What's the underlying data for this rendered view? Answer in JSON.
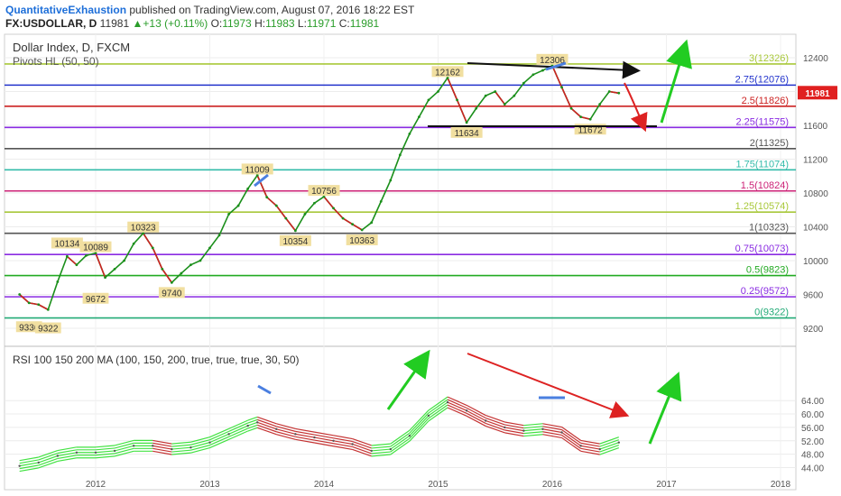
{
  "header": {
    "author": "QuantitativeExhaustion",
    "published": "published on TradingView.com, August 07, 2016 18:22 EST",
    "symbol": "FX:USDOLLAR, D",
    "price": "11981",
    "change": "+13 (+0.11%)",
    "o_label": "O:",
    "o": "11973",
    "h_label": "H:",
    "h": "11983",
    "l_label": "L:",
    "l": "11971",
    "c_label": "C:",
    "c": "11981"
  },
  "colors": {
    "up": "#2a9d2a",
    "author": "#1e6fd9",
    "last_price_bg": "#e02020",
    "rsi_green": "#22dd22",
    "rsi_red": "#bb1111"
  },
  "chart_data": [
    {
      "type": "line",
      "title": "Dollar Index, D, FXCM",
      "subtitle": "Pivots HL (50, 50)",
      "x_ticks": [
        "2012",
        "2013",
        "2014",
        "2015",
        "2016",
        "2017",
        "2018"
      ],
      "y_ticks": [
        9200,
        9600,
        10000,
        10400,
        10800,
        11200,
        11600,
        12000,
        12400
      ],
      "ylim": [
        9150,
        12520
      ],
      "last_price": "11981",
      "price_series": [
        [
          "2011-05",
          9600
        ],
        [
          "2011-06",
          9500
        ],
        [
          "2011-07",
          9480
        ],
        [
          "2011-08",
          9420
        ],
        [
          "2011-09",
          9750
        ],
        [
          "2011-10",
          10050
        ],
        [
          "2011-11",
          9950
        ],
        [
          "2011-12",
          10060
        ],
        [
          "2012-01",
          10089
        ],
        [
          "2012-02",
          9800
        ],
        [
          "2012-03",
          9900
        ],
        [
          "2012-04",
          10000
        ],
        [
          "2012-05",
          10200
        ],
        [
          "2012-06",
          10323
        ],
        [
          "2012-07",
          10150
        ],
        [
          "2012-08",
          9900
        ],
        [
          "2012-09",
          9740
        ],
        [
          "2012-10",
          9850
        ],
        [
          "2012-11",
          9950
        ],
        [
          "2012-12",
          10000
        ],
        [
          "2013-01",
          10150
        ],
        [
          "2013-02",
          10300
        ],
        [
          "2013-03",
          10550
        ],
        [
          "2013-04",
          10650
        ],
        [
          "2013-05",
          10850
        ],
        [
          "2013-06",
          11009
        ],
        [
          "2013-07",
          10750
        ],
        [
          "2013-08",
          10650
        ],
        [
          "2013-09",
          10500
        ],
        [
          "2013-10",
          10354
        ],
        [
          "2013-11",
          10550
        ],
        [
          "2013-12",
          10680
        ],
        [
          "2014-01",
          10756
        ],
        [
          "2014-02",
          10620
        ],
        [
          "2014-03",
          10500
        ],
        [
          "2014-04",
          10430
        ],
        [
          "2014-05",
          10363
        ],
        [
          "2014-06",
          10450
        ],
        [
          "2014-07",
          10700
        ],
        [
          "2014-08",
          10950
        ],
        [
          "2014-09",
          11250
        ],
        [
          "2014-10",
          11500
        ],
        [
          "2014-11",
          11700
        ],
        [
          "2014-12",
          11900
        ],
        [
          "2015-01",
          12000
        ],
        [
          "2015-02",
          12162
        ],
        [
          "2015-03",
          11900
        ],
        [
          "2015-04",
          11634
        ],
        [
          "2015-05",
          11800
        ],
        [
          "2015-06",
          11950
        ],
        [
          "2015-07",
          12000
        ],
        [
          "2015-08",
          11850
        ],
        [
          "2015-09",
          11950
        ],
        [
          "2015-10",
          12100
        ],
        [
          "2015-11",
          12200
        ],
        [
          "2015-12",
          12250
        ],
        [
          "2016-01",
          12306
        ],
        [
          "2016-02",
          12050
        ],
        [
          "2016-03",
          11800
        ],
        [
          "2016-04",
          11700
        ],
        [
          "2016-05",
          11672
        ],
        [
          "2016-06",
          11850
        ],
        [
          "2016-07",
          12000
        ],
        [
          "2016-08",
          11981
        ]
      ],
      "pivot_labels": [
        {
          "x": "2011-06",
          "y": 9336,
          "label": "9336"
        },
        {
          "x": "2011-08",
          "y": 9322,
          "label": "9322"
        },
        {
          "x": "2011-10",
          "y": 10134,
          "label": "10134"
        },
        {
          "x": "2012-01",
          "y": 10089,
          "label": "10089"
        },
        {
          "x": "2012-01",
          "y": 9672,
          "label": "9672"
        },
        {
          "x": "2012-06",
          "y": 10323,
          "label": "10323"
        },
        {
          "x": "2012-09",
          "y": 9740,
          "label": "9740"
        },
        {
          "x": "2013-06",
          "y": 11009,
          "label": "11009"
        },
        {
          "x": "2013-10",
          "y": 10354,
          "label": "10354"
        },
        {
          "x": "2014-01",
          "y": 10756,
          "label": "10756"
        },
        {
          "x": "2014-05",
          "y": 10363,
          "label": "10363"
        },
        {
          "x": "2015-02",
          "y": 12162,
          "label": "12162"
        },
        {
          "x": "2015-04",
          "y": 11634,
          "label": "11634"
        },
        {
          "x": "2016-01",
          "y": 12306,
          "label": "12306"
        },
        {
          "x": "2016-05",
          "y": 11672,
          "label": "11672"
        }
      ],
      "levels": [
        {
          "value": 12326,
          "label": "3(12326)",
          "color": "#a8c83a"
        },
        {
          "value": 12076,
          "label": "2.75(12076)",
          "color": "#2233cc"
        },
        {
          "value": 11826,
          "label": "2.5(11826)",
          "color": "#cc2222"
        },
        {
          "value": 11575,
          "label": "2.25(11575)",
          "color": "#8a2be2"
        },
        {
          "value": 11325,
          "label": "2(11325)",
          "color": "#555555"
        },
        {
          "value": 11074,
          "label": "1.75(11074)",
          "color": "#33bbaa"
        },
        {
          "value": 10824,
          "label": "1.5(10824)",
          "color": "#cc2277"
        },
        {
          "value": 10574,
          "label": "1.25(10574)",
          "color": "#a8c83a"
        },
        {
          "value": 10323,
          "label": "1(10323)",
          "color": "#555555"
        },
        {
          "value": 10073,
          "label": "0.75(10073)",
          "color": "#8a2be2"
        },
        {
          "value": 9823,
          "label": "0.5(9823)",
          "color": "#22aa22"
        },
        {
          "value": 9572,
          "label": "0.25(9572)",
          "color": "#8a2be2"
        },
        {
          "value": 9322,
          "label": "0(9322)",
          "color": "#22aa77"
        }
      ]
    },
    {
      "type": "line",
      "title": "RSI 100 150 200 MA (100, 150, 200, true, true, true, 30, 50)",
      "y_ticks": [
        44,
        48,
        52,
        56,
        60,
        64
      ],
      "ylim": [
        43,
        65
      ],
      "rsi_series": [
        [
          "2011-05",
          44.5
        ],
        [
          "2011-07",
          45.5
        ],
        [
          "2011-09",
          47.5
        ],
        [
          "2011-11",
          48.5
        ],
        [
          "2012-01",
          48.5
        ],
        [
          "2012-03",
          49.0
        ],
        [
          "2012-05",
          50.5
        ],
        [
          "2012-07",
          50.5
        ],
        [
          "2012-09",
          49.5
        ],
        [
          "2012-11",
          50.0
        ],
        [
          "2013-01",
          51.5
        ],
        [
          "2013-03",
          54.0
        ],
        [
          "2013-05",
          56.5
        ],
        [
          "2013-06",
          57.5
        ],
        [
          "2013-08",
          55.5
        ],
        [
          "2013-10",
          54.0
        ],
        [
          "2013-12",
          53.0
        ],
        [
          "2014-02",
          52.0
        ],
        [
          "2014-04",
          51.0
        ],
        [
          "2014-06",
          49.0
        ],
        [
          "2014-08",
          49.5
        ],
        [
          "2014-10",
          53.5
        ],
        [
          "2014-12",
          59.5
        ],
        [
          "2015-02",
          63.5
        ],
        [
          "2015-04",
          61.0
        ],
        [
          "2015-06",
          58.0
        ],
        [
          "2015-08",
          56.0
        ],
        [
          "2015-10",
          55.0
        ],
        [
          "2015-12",
          55.5
        ],
        [
          "2016-02",
          54.5
        ],
        [
          "2016-04",
          50.5
        ],
        [
          "2016-06",
          49.5
        ],
        [
          "2016-08",
          51.5
        ]
      ]
    }
  ]
}
